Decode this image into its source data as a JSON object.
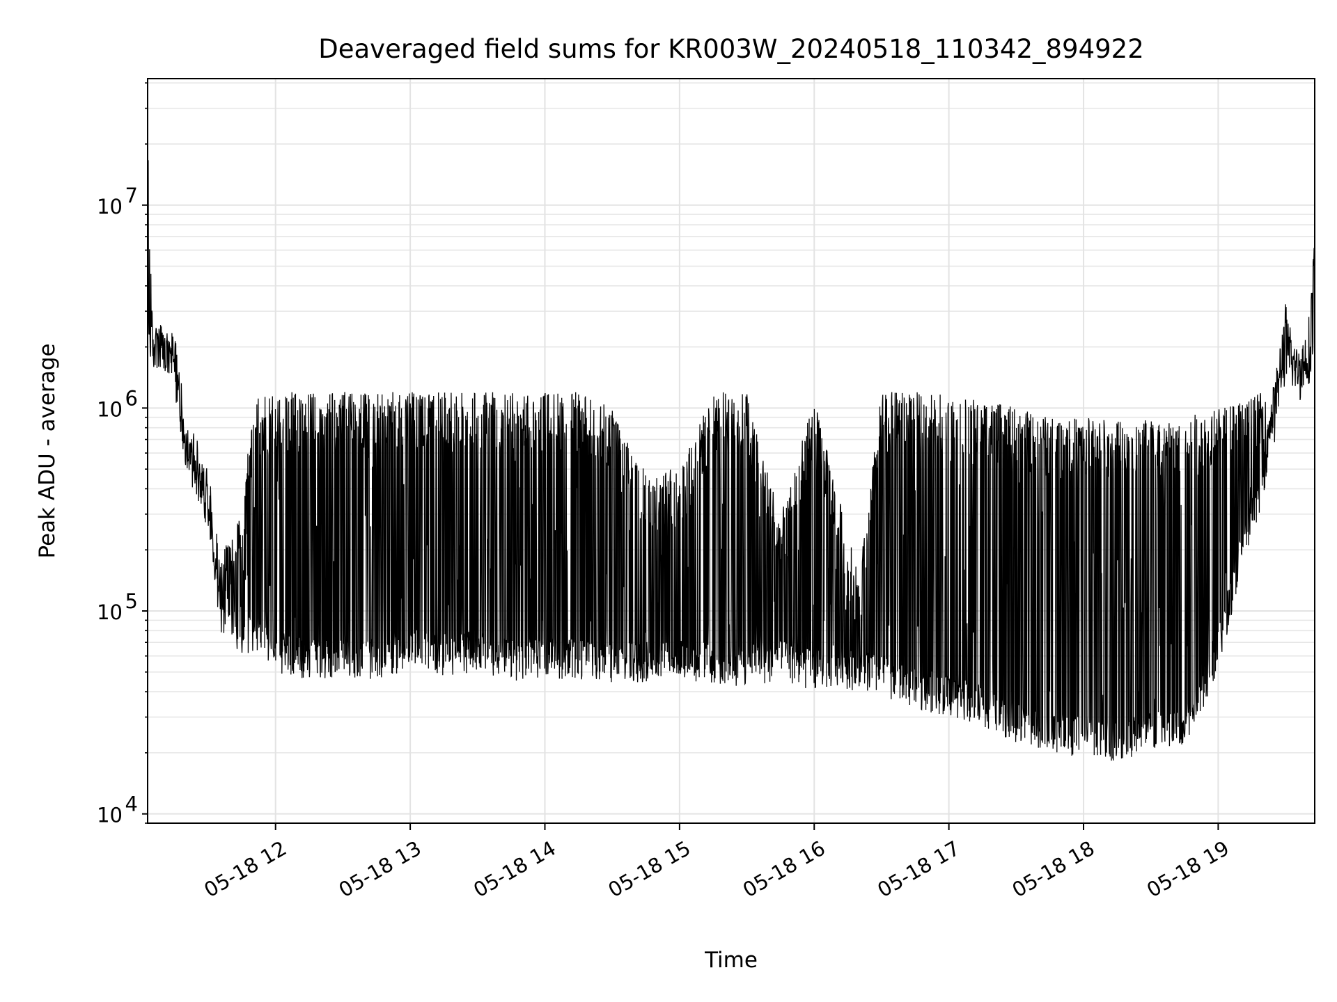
{
  "chart_data": {
    "type": "line",
    "title": "Deaveraged field sums for KR003W_20240518_110342_894922",
    "xlabel": "Time",
    "ylabel": "Peak ADU - average",
    "yscale": "log",
    "ylim": [
      9000,
      42000000
    ],
    "xlim": [
      "05-18 11:03",
      "05-18 19:43"
    ],
    "grid": true,
    "line_color": "#000000",
    "x_ticks": [
      {
        "label": "05-18 12",
        "value": "05-18 12:00"
      },
      {
        "label": "05-18 13",
        "value": "05-18 13:00"
      },
      {
        "label": "05-18 14",
        "value": "05-18 14:00"
      },
      {
        "label": "05-18 15",
        "value": "05-18 15:00"
      },
      {
        "label": "05-18 16",
        "value": "05-18 16:00"
      },
      {
        "label": "05-18 17",
        "value": "05-18 17:00"
      },
      {
        "label": "05-18 18",
        "value": "05-18 18:00"
      },
      {
        "label": "05-18 19",
        "value": "05-18 19:00"
      }
    ],
    "y_ticks": [
      {
        "base": "10",
        "exp": "4",
        "value": 10000
      },
      {
        "base": "10",
        "exp": "5",
        "value": 100000
      },
      {
        "base": "10",
        "exp": "6",
        "value": 1000000
      },
      {
        "base": "10",
        "exp": "7",
        "value": 10000000
      }
    ],
    "series": [
      {
        "x": [
          "05-18 11:03",
          "05-18 11:05",
          "05-18 11:10",
          "05-18 11:15",
          "05-18 11:20",
          "05-18 11:25",
          "05-18 11:30",
          "05-18 11:35",
          "05-18 11:40",
          "05-18 11:45",
          "05-18 11:50",
          "05-18 12:00",
          "05-18 12:15",
          "05-18 12:30",
          "05-18 12:45",
          "05-18 13:00",
          "05-18 13:15",
          "05-18 13:30",
          "05-18 13:45",
          "05-18 14:00",
          "05-18 14:15",
          "05-18 14:30",
          "05-18 14:45",
          "05-18 15:00",
          "05-18 15:15",
          "05-18 15:30",
          "05-18 15:45",
          "05-18 16:00",
          "05-18 16:10",
          "05-18 16:20",
          "05-18 16:30",
          "05-18 16:45",
          "05-18 17:00",
          "05-18 17:15",
          "05-18 17:30",
          "05-18 17:45",
          "05-18 18:00",
          "05-18 18:15",
          "05-18 18:30",
          "05-18 18:45",
          "05-18 19:00",
          "05-18 19:10",
          "05-18 19:20",
          "05-18 19:25",
          "05-18 19:30",
          "05-18 19:35",
          "05-18 19:40",
          "05-18 19:43"
        ],
        "low": [
          2000000,
          1500000,
          1500000,
          1200000,
          500000,
          350000,
          300000,
          80000,
          70000,
          55000,
          60000,
          50000,
          45000,
          48000,
          45000,
          52000,
          48000,
          50000,
          45000,
          47000,
          45000,
          43000,
          44000,
          45000,
          43000,
          42000,
          45000,
          40000,
          42000,
          40000,
          38000,
          33000,
          30000,
          27000,
          22000,
          20000,
          19000,
          18000,
          20000,
          20000,
          50000,
          150000,
          350000,
          900000,
          1300000,
          1200000,
          1300000,
          1400000
        ],
        "high": [
          28000000,
          3000000,
          2500000,
          2500000,
          900000,
          700000,
          500000,
          200000,
          250000,
          300000,
          1100000,
          1200000,
          1200000,
          1200000,
          1200000,
          1200000,
          1200000,
          1200000,
          1200000,
          1200000,
          1200000,
          1000000,
          500000,
          500000,
          1200000,
          1200000,
          300000,
          1100000,
          400000,
          150000,
          1200000,
          1200000,
          1200000,
          1100000,
          1000000,
          900000,
          900000,
          900000,
          900000,
          900000,
          1000000,
          1100000,
          1200000,
          1300000,
          3300000,
          2000000,
          2500000,
          7500000
        ]
      }
    ]
  }
}
